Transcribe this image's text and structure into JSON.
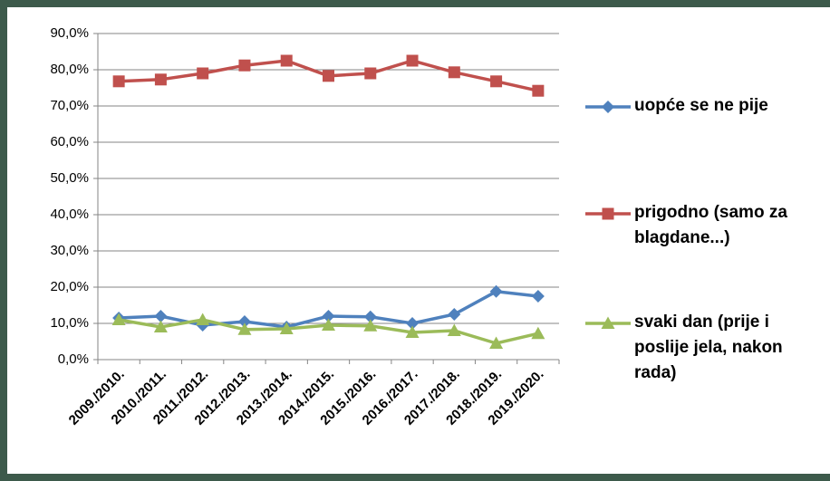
{
  "chart_data": {
    "type": "line",
    "categories": [
      "2009./2010.",
      "2010./2011.",
      "2011./2012.",
      "2012./2013.",
      "2013./2014.",
      "2014./2015.",
      "2015./2016.",
      "2016./2017.",
      "2017./2018.",
      "2018./2019.",
      "2019./2020."
    ],
    "series": [
      {
        "name": "uopće se ne pije",
        "color": "#4f81bd",
        "marker": "diamond",
        "values": [
          11.5,
          12,
          9.5,
          10.5,
          9,
          12,
          11.8,
          10,
          12.5,
          18.8,
          17.5
        ]
      },
      {
        "name": "prigodno (samo za blagdane...)",
        "color": "#c0504d",
        "marker": "square",
        "values": [
          76.8,
          77.3,
          79,
          81.2,
          82.5,
          78.3,
          79,
          82.5,
          79.3,
          76.8,
          74.2
        ]
      },
      {
        "name": "svaki dan (prije i poslije jela, nakon rada)",
        "color": "#9bbb59",
        "marker": "triangle",
        "values": [
          11,
          9,
          11,
          8.3,
          8.5,
          9.5,
          9.3,
          7.5,
          8,
          4.5,
          7.2
        ]
      }
    ],
    "ylim": [
      0,
      90
    ],
    "yticks": [
      {
        "value": 0,
        "label": "0,0%"
      },
      {
        "value": 10,
        "label": "10,0%"
      },
      {
        "value": 20,
        "label": "20,0%"
      },
      {
        "value": 30,
        "label": "30,0%"
      },
      {
        "value": 40,
        "label": "40,0%"
      },
      {
        "value": 50,
        "label": "50,0%"
      },
      {
        "value": 60,
        "label": "60,0%"
      },
      {
        "value": 70,
        "label": "70,0%"
      },
      {
        "value": 80,
        "label": "80,0%"
      },
      {
        "value": 90,
        "label": "90,0%"
      }
    ],
    "grid": true,
    "legend": "right"
  }
}
